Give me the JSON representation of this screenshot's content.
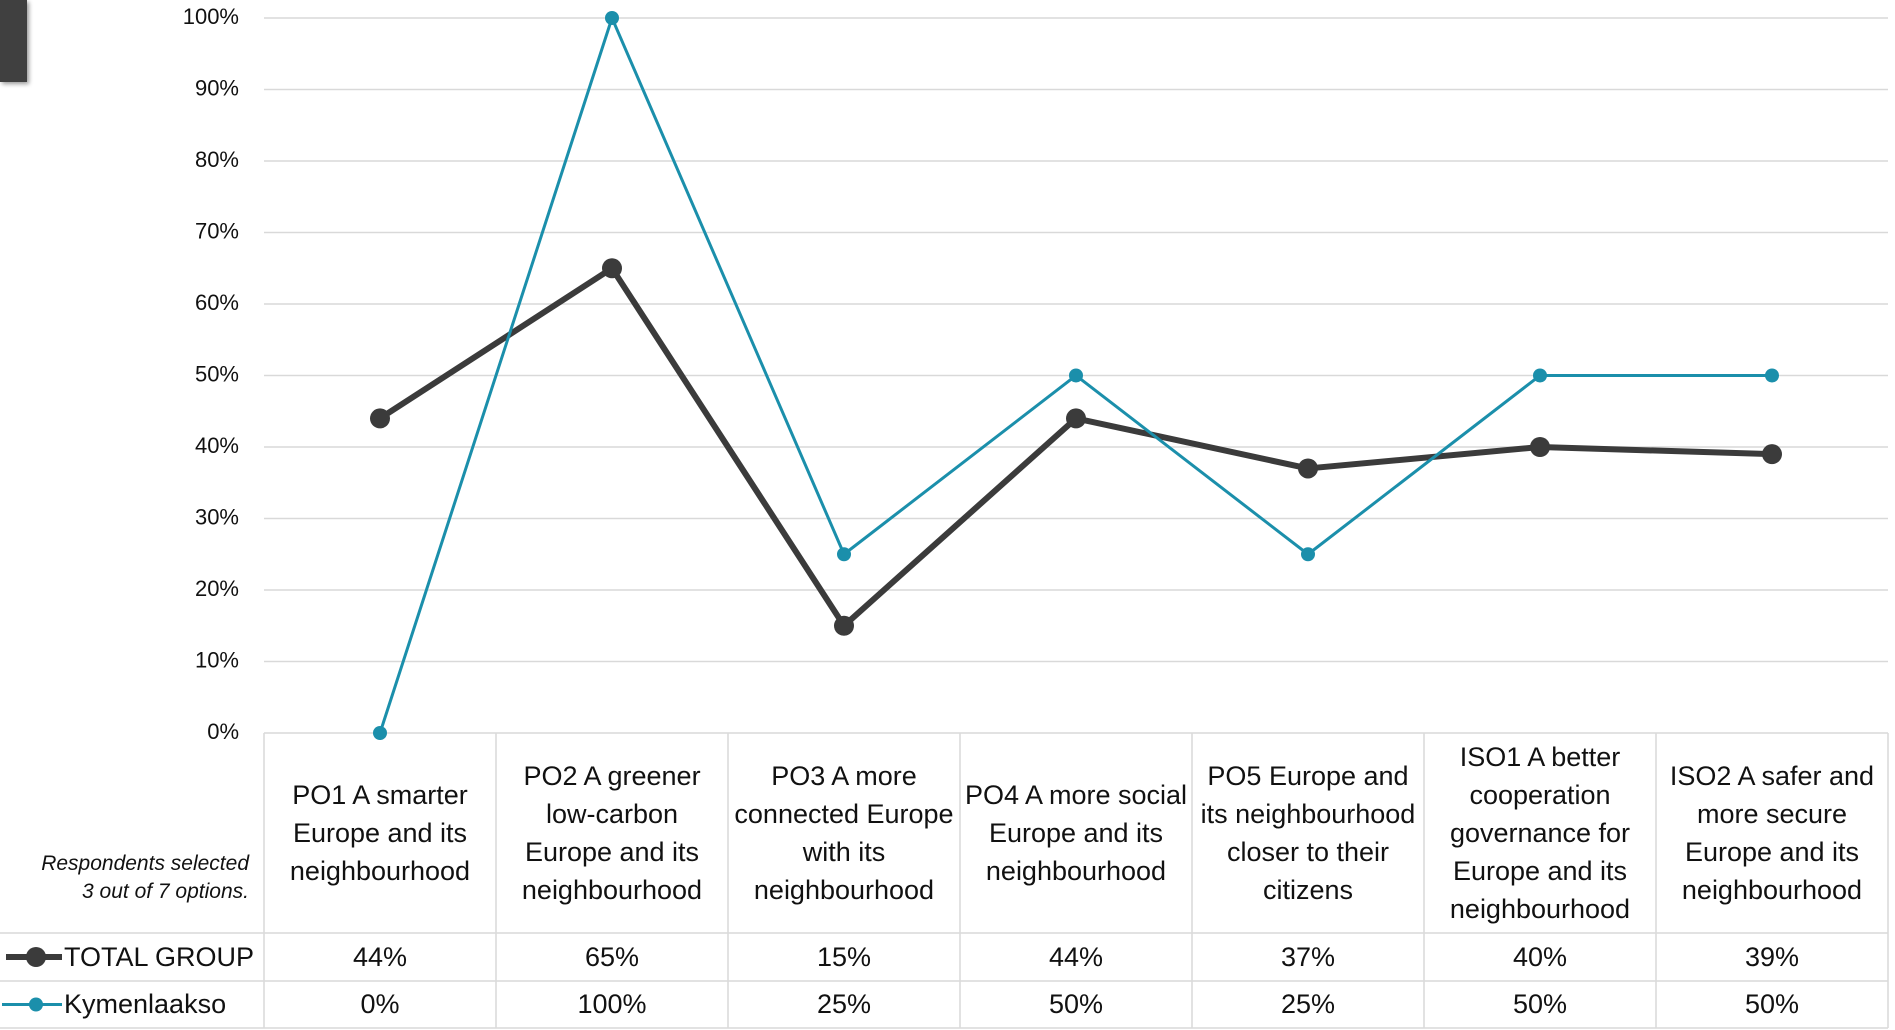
{
  "chart_data": {
    "type": "line",
    "note": "Respondents selected 3 out of 7 options.",
    "categories": [
      "PO1 A smarter Europe and its neighbourhood",
      "PO2 A greener low-carbon Europe and its neighbourhood",
      "PO3 A more connected Europe with its neighbourhood",
      "PO4 A more social Europe and its neighbourhood",
      "PO5 Europe and its neighbourhood closer to their citizens",
      "ISO1 A better cooperation governance for Europe and its neighbourhood",
      "ISO2 A safer and more secure Europe and its neighbourhood"
    ],
    "series": [
      {
        "name": "TOTAL GROUP",
        "color": "#3b3b3b",
        "values": [
          44,
          65,
          15,
          44,
          37,
          40,
          39
        ],
        "value_labels": [
          "44%",
          "65%",
          "15%",
          "44%",
          "37%",
          "40%",
          "39%"
        ]
      },
      {
        "name": "Kymenlaakso",
        "color": "#1b8fab",
        "values": [
          0,
          100,
          25,
          50,
          25,
          50,
          50
        ],
        "value_labels": [
          "0%",
          "100%",
          "25%",
          "50%",
          "25%",
          "50%",
          "50%"
        ]
      }
    ],
    "ylim": [
      0,
      100
    ],
    "yticks": [
      {
        "value": 0,
        "label": "0%"
      },
      {
        "value": 10,
        "label": "10%"
      },
      {
        "value": 20,
        "label": "20%"
      },
      {
        "value": 30,
        "label": "30%"
      },
      {
        "value": 40,
        "label": "40%"
      },
      {
        "value": 50,
        "label": "50%"
      },
      {
        "value": 60,
        "label": "60%"
      },
      {
        "value": 70,
        "label": "70%"
      },
      {
        "value": 80,
        "label": "80%"
      },
      {
        "value": 90,
        "label": "90%"
      },
      {
        "value": 100,
        "label": "100%"
      }
    ],
    "grid": true
  }
}
